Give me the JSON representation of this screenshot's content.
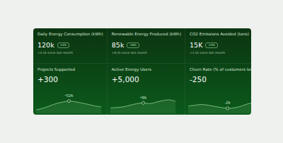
{
  "cards": [
    {
      "title": "Daily Energy Consumption (kWh)",
      "value": "120k",
      "badge": "+4%",
      "change": "+4.5k since last month"
    },
    {
      "title": "Renewable Energy Produced (kWh)",
      "value": "85k",
      "badge": "+6%",
      "change": "+6.2k since last month"
    },
    {
      "title": "CO2 Emissions Avoided (tons)",
      "value": "15K",
      "badge": "+3%",
      "change": "+1.5k since last month"
    }
  ],
  "chart_data": [
    {
      "type": "line",
      "title": "Projects Supported",
      "subtitle": "+300",
      "color": "#7fbf7f",
      "x": [
        0,
        1,
        2,
        3,
        4,
        5,
        6,
        7,
        8,
        9,
        10
      ],
      "values": [
        20,
        28,
        40,
        52,
        60,
        66,
        62,
        55,
        48,
        40,
        35
      ],
      "xlim": [
        0,
        10
      ],
      "ylim": [
        0,
        100
      ],
      "tick_labels": false,
      "grid": false,
      "annotation": {
        "x": 5,
        "text": "+32%"
      }
    },
    {
      "type": "line",
      "title": "Active Energy Users",
      "subtitle": "+5,000",
      "color": "#7fbf7f",
      "x": [
        0,
        1,
        2,
        3,
        4,
        5,
        6,
        7,
        8,
        9,
        10
      ],
      "values": [
        30,
        32,
        36,
        44,
        52,
        56,
        52,
        60,
        68,
        72,
        64
      ],
      "xlim": [
        0,
        10
      ],
      "ylim": [
        0,
        100
      ],
      "tick_labels": false,
      "grid": false,
      "annotation": {
        "x": 5,
        "text": "+8%"
      }
    },
    {
      "type": "line",
      "title": "Churn Rate (% of customers lost)",
      "subtitle": "-250",
      "color": "#7fbf7f",
      "x": [
        0,
        1,
        2,
        3,
        4,
        5,
        6,
        7,
        8,
        9,
        10
      ],
      "values": [
        40,
        44,
        48,
        44,
        38,
        32,
        28,
        30,
        38,
        50,
        58
      ],
      "xlim": [
        0,
        10
      ],
      "ylim": [
        0,
        100
      ],
      "tick_labels": false,
      "grid": false,
      "annotation": {
        "x": 6,
        "text": "-2%"
      }
    }
  ]
}
